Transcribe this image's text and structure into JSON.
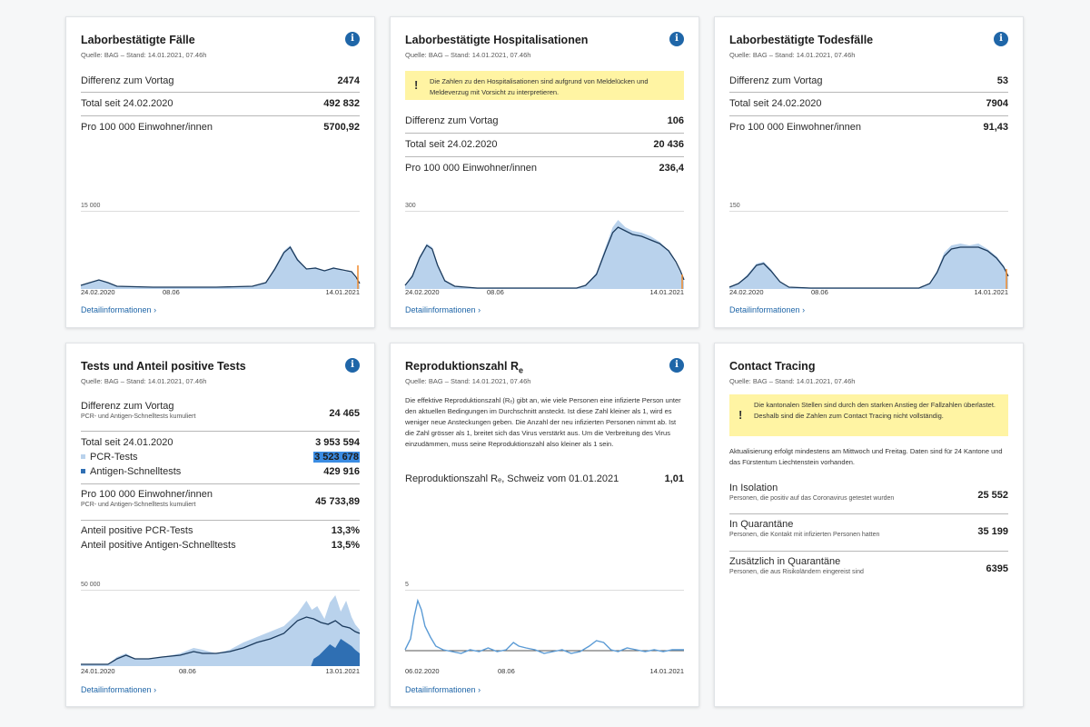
{
  "colors": {
    "accent": "#1f66a8",
    "bar": "#b9d2ec",
    "line": "#1b3a5c",
    "warn_bg": "#fff4a3"
  },
  "common": {
    "source": "Quelle: BAG – Stand: 14.01.2021, 07.46h",
    "detail_link": "Detailinformationen",
    "info_icon": "i"
  },
  "cases": {
    "title": "Laborbestätigte Fälle",
    "rows": [
      {
        "label": "Differenz zum Vortag",
        "value": "2474"
      },
      {
        "label": "Total seit 24.02.2020",
        "value": "492 832"
      },
      {
        "label": "Pro 100 000 Einwohner/innen",
        "value": "5700,92"
      }
    ],
    "chart": {
      "ymax_label": "15 000",
      "x_labels": [
        "24.02.2020",
        "08.06",
        "14.01.2021"
      ]
    }
  },
  "hosp": {
    "title": "Laborbestätigte Hospitalisationen",
    "warning": "Die Zahlen zu den Hospitalisationen sind aufgrund von Meldelücken und Meldeverzug mit Vorsicht zu interpretieren.",
    "warning_icon": "!",
    "rows": [
      {
        "label": "Differenz zum Vortag",
        "value": "106"
      },
      {
        "label": "Total seit 24.02.2020",
        "value": "20 436"
      },
      {
        "label": "Pro 100 000 Einwohner/innen",
        "value": "236,4"
      }
    ],
    "chart": {
      "ymax_label": "300",
      "x_labels": [
        "24.02.2020",
        "08.06",
        "14.01.2021"
      ]
    }
  },
  "deaths": {
    "title": "Laborbestätigte Todesfälle",
    "rows": [
      {
        "label": "Differenz zum Vortag",
        "value": "53"
      },
      {
        "label": "Total seit 24.02.2020",
        "value": "7904"
      },
      {
        "label": "Pro 100 000 Einwohner/innen",
        "value": "91,43"
      }
    ],
    "chart": {
      "ymax_label": "150",
      "x_labels": [
        "24.02.2020",
        "08.06",
        "14.01.2021"
      ]
    }
  },
  "tests": {
    "title": "Tests und Anteil positive Tests",
    "diff": {
      "label": "Differenz zum Vortag",
      "sub": "PCR- und Antigen-Schnelltests kumuliert",
      "value": "24 465"
    },
    "total": {
      "label": "Total seit 24.01.2020",
      "value": "3 953 594"
    },
    "pcr": {
      "label": "PCR-Tests",
      "value": "3 523 678"
    },
    "antigen": {
      "label": "Antigen-Schnelltests",
      "value": "429 916"
    },
    "per100k": {
      "label": "Pro 100 000 Einwohner/innen",
      "sub": "PCR- und Antigen-Schnelltests kumuliert",
      "value": "45 733,89"
    },
    "pos_pcr": {
      "label": "Anteil positive PCR-Tests",
      "value": "13,3%"
    },
    "pos_ag": {
      "label": "Anteil positive Antigen-Schnelltests",
      "value": "13,5%"
    },
    "chart": {
      "ymax_label": "50 000",
      "x_labels": [
        "24.01.2020",
        "08.06",
        "13.01.2021"
      ]
    }
  },
  "repro": {
    "title": "Reproduktionszahl R",
    "title_sub": "e",
    "description": "Die effektive Reproduktionszahl (Rₑ) gibt an, wie viele Personen eine infizierte Person unter den aktuellen Bedingungen im Durchschnitt ansteckt. Ist diese Zahl kleiner als 1, wird es weniger neue Ansteckungen geben. Die Anzahl der neu infizierten Personen nimmt ab. Ist die Zahl grösser als 1, breitet sich das Virus verstärkt aus. Um die Verbreitung des Virus einzudämmen, muss seine Reproduktionszahl also kleiner als 1 sein.",
    "row": {
      "label": "Reproduktionszahl Rₑ, Schweiz vom 01.01.2021",
      "value": "1,01"
    },
    "chart": {
      "ymax_label": "5",
      "x_labels": [
        "06.02.2020",
        "08.06",
        "14.01.2021"
      ]
    }
  },
  "tracing": {
    "title": "Contact Tracing",
    "warning": "Die kantonalen Stellen sind durch den starken Anstieg der Fallzahlen überlastet. Deshalb sind die Zahlen zum Contact Tracing nicht vollständig.",
    "warning_icon": "!",
    "note": "Aktualisierung erfolgt mindestens am Mittwoch und Freitag. Daten sind für 24 Kantone und das Fürstentum Liechtenstein vorhanden.",
    "rows": [
      {
        "label": "In Isolation",
        "sub": "Personen, die positiv auf das Coronavirus getestet wurden",
        "value": "25 552"
      },
      {
        "label": "In Quarantäne",
        "sub": "Personen, die Kontakt mit infizierten Personen hatten",
        "value": "35 199"
      },
      {
        "label": "Zusätzlich in Quarantäne",
        "sub": "Personen, die aus Risikoländern eingereist sind",
        "value": "6395"
      }
    ]
  }
}
